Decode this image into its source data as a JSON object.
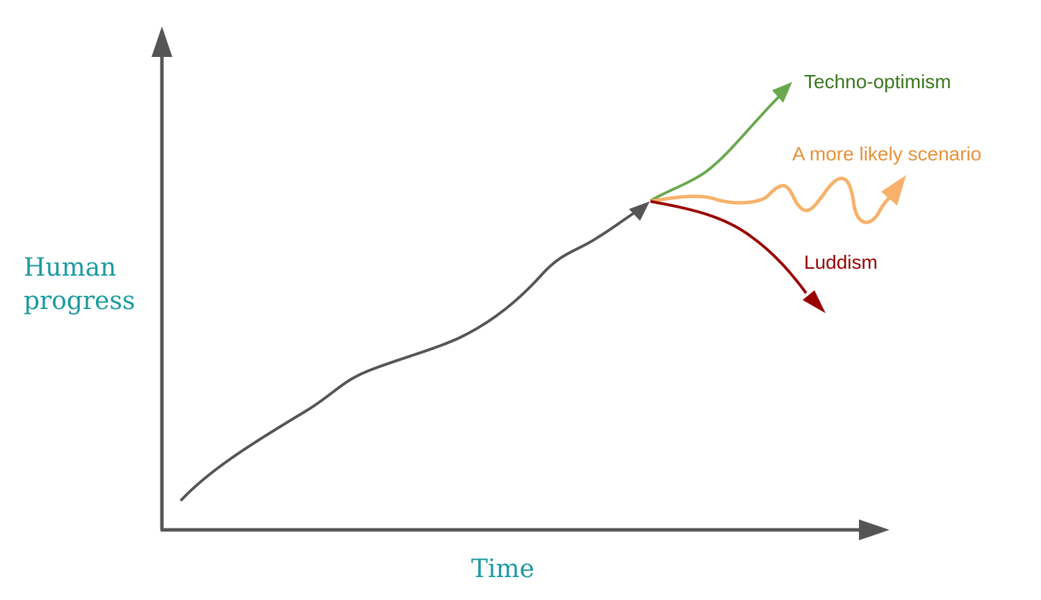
{
  "axes": {
    "y_label": "Human progress",
    "x_label": "Time"
  },
  "scenarios": [
    {
      "label": "Techno-optimism"
    },
    {
      "label": "A more likely scenario"
    },
    {
      "label": "Luddism"
    }
  ]
}
